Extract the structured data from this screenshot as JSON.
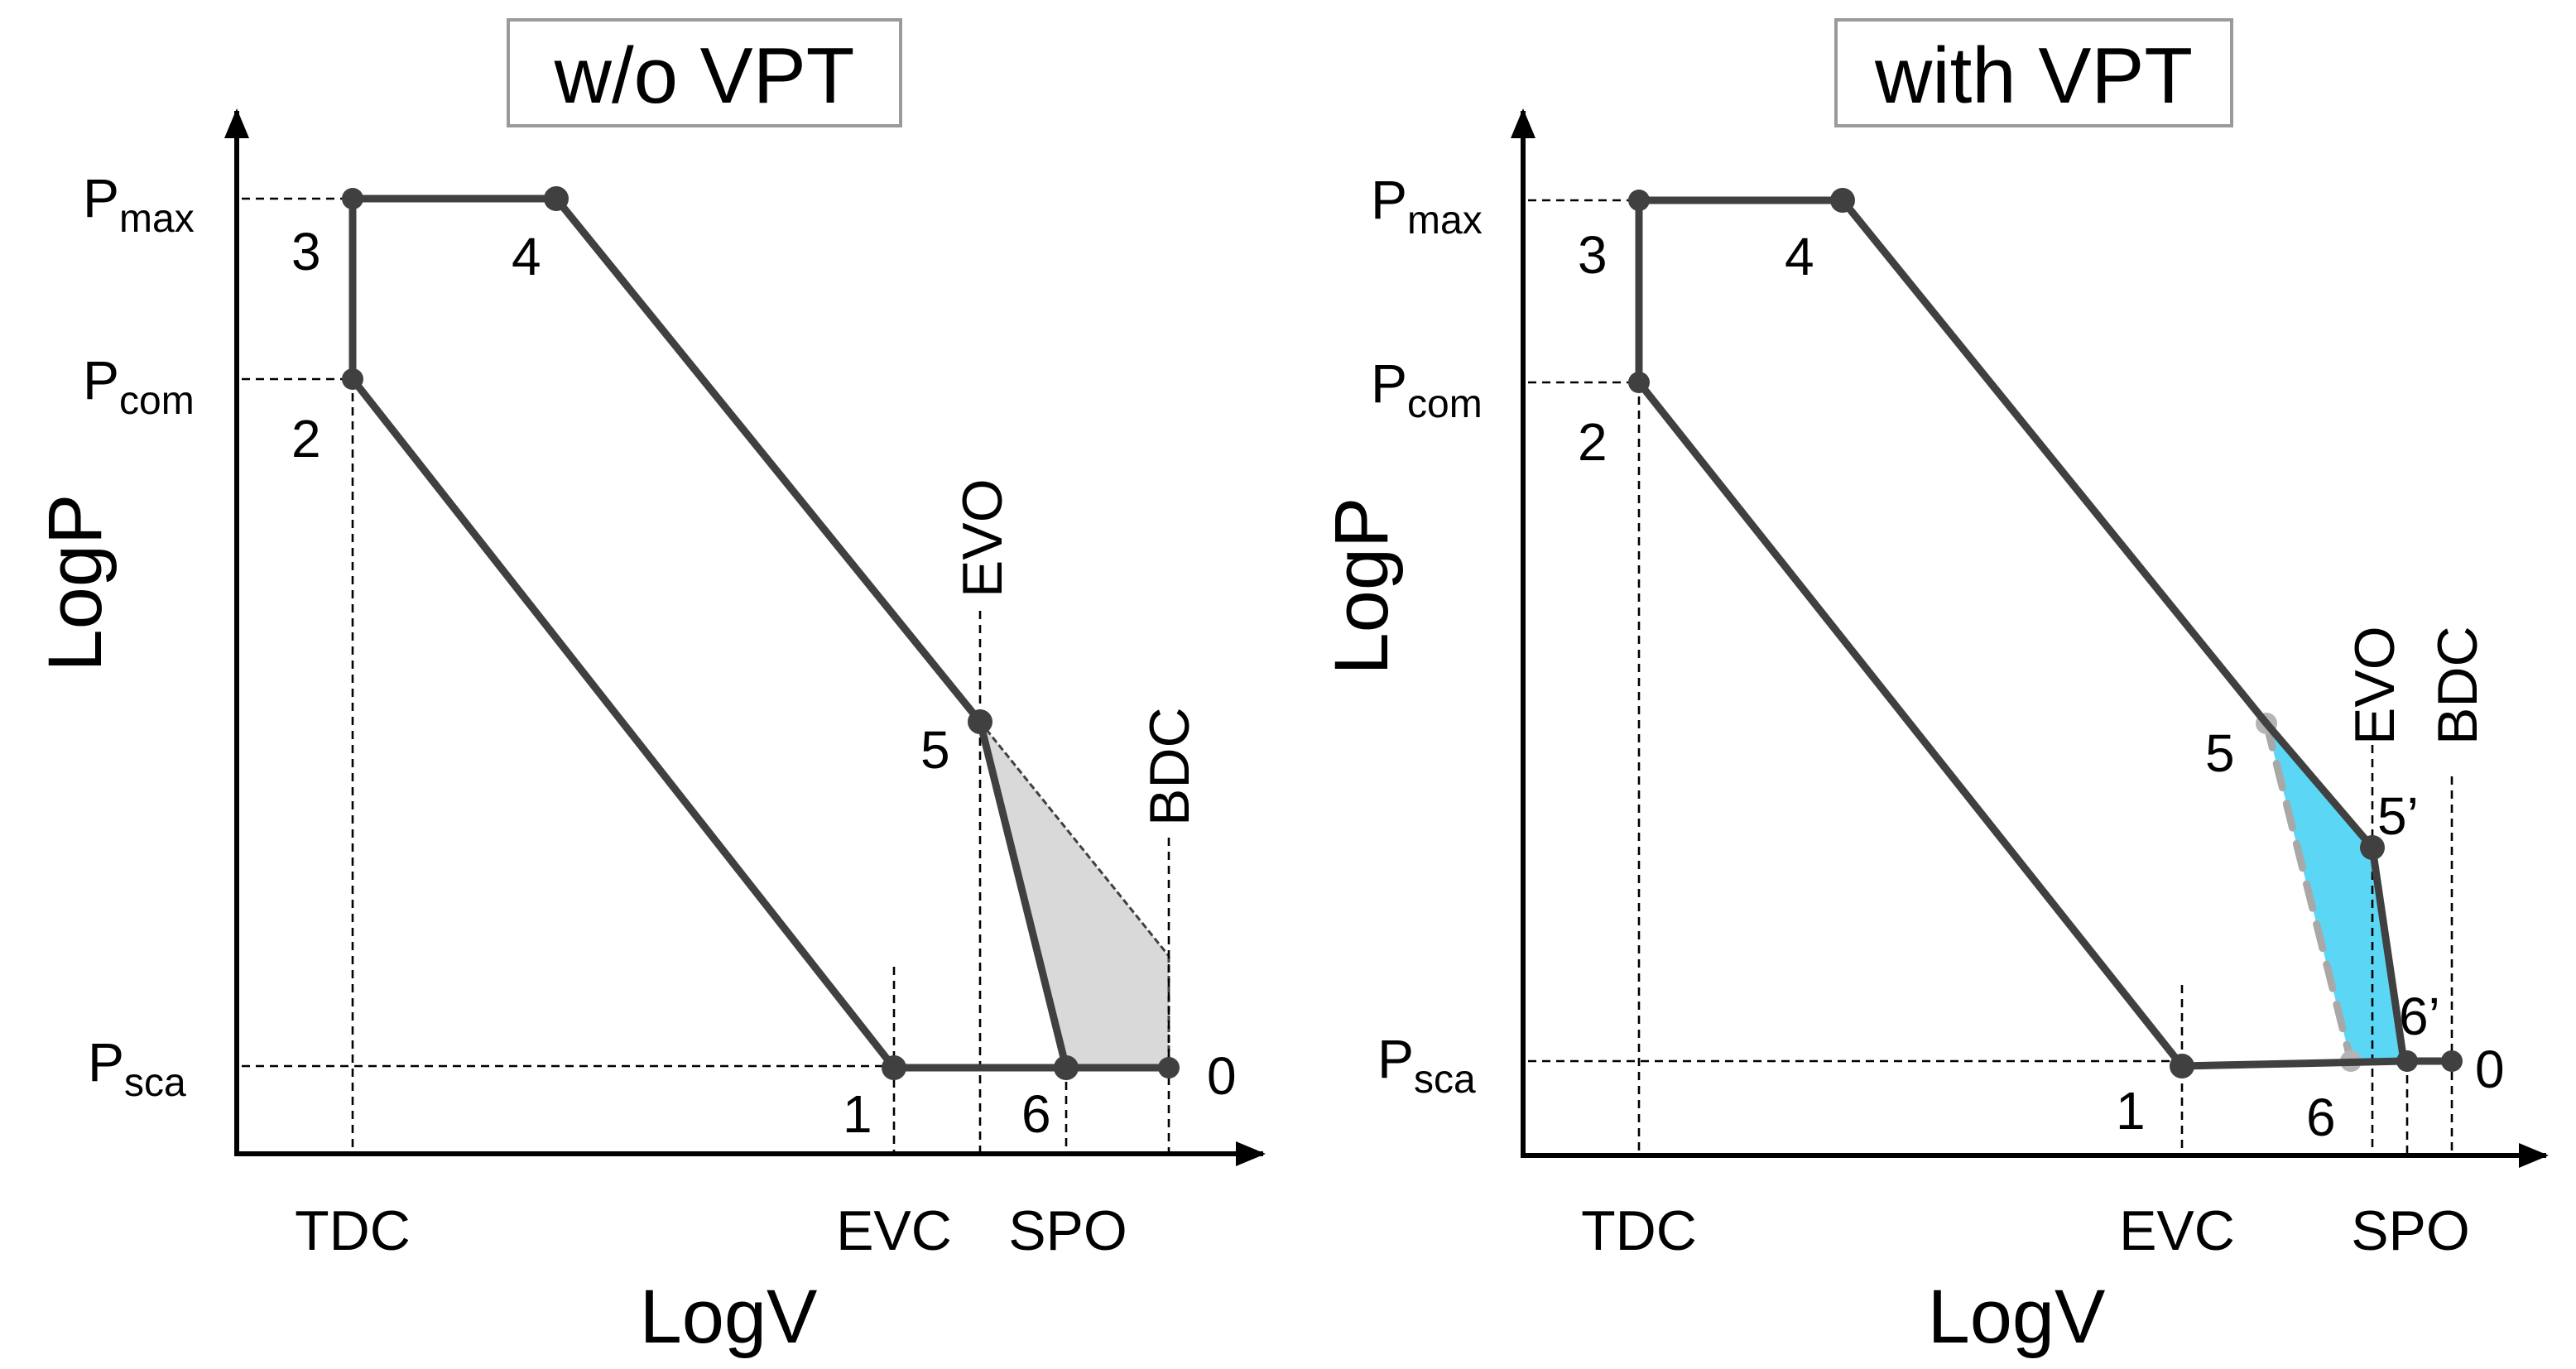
{
  "colors": {
    "cycle_line": "#404040",
    "loss_area_fill": "#d9d9d9",
    "gain_area_fill": "#5bd7f5",
    "ghost_line": "#a8a8a8",
    "title_border": "#9a9a9a"
  },
  "left_panel": {
    "title": "w/o VPT",
    "x_axis_label": "LogV",
    "y_axis_label": "LogP",
    "y_ticks": [
      {
        "base": "P",
        "sub": "max"
      },
      {
        "base": "P",
        "sub": "com"
      },
      {
        "base": "P",
        "sub": "sca"
      }
    ],
    "x_ticks": [
      "TDC",
      "EVC",
      "SPO"
    ],
    "vertical_labels": [
      "EVO",
      "BDC"
    ],
    "state_points": [
      "3",
      "4",
      "2",
      "5",
      "1",
      "6",
      "0"
    ]
  },
  "right_panel": {
    "title": "with VPT",
    "x_axis_label": "LogV",
    "y_axis_label": "LogP",
    "y_ticks": [
      {
        "base": "P",
        "sub": "max"
      },
      {
        "base": "P",
        "sub": "com"
      },
      {
        "base": "P",
        "sub": "sca"
      }
    ],
    "x_ticks": [
      "TDC",
      "EVC",
      "SPO"
    ],
    "vertical_labels": [
      "EVO",
      "BDC"
    ],
    "state_points": [
      "3",
      "4",
      "2",
      "5",
      "5’",
      "6’",
      "1",
      "6",
      "0"
    ]
  }
}
